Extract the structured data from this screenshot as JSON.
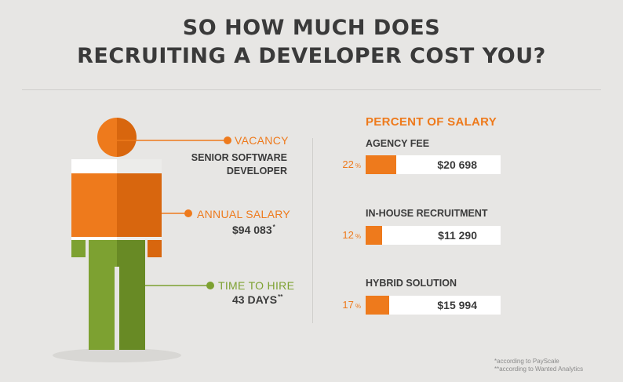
{
  "title": {
    "line1": "SO HOW MUCH DOES",
    "line2": "RECRUITING A DEVELOPER COST YOU?"
  },
  "colors": {
    "orange": "#ee7a1c",
    "green": "#7da131",
    "text": "#3a3a3a",
    "background": "#e7e6e4"
  },
  "figure": {
    "vacancy": {
      "heading": "VACANCY",
      "value_line1": "SENIOR SOFTWARE",
      "value_line2": "DEVELOPER"
    },
    "salary": {
      "heading": "ANNUAL SALARY",
      "value": "$94 083",
      "mark": "*"
    },
    "hire": {
      "heading": "TIME TO HIRE",
      "value": "43 DAYS",
      "mark": "**"
    }
  },
  "costs": {
    "title": "PERCENT OF SALARY",
    "items": [
      {
        "label": "AGENCY FEE",
        "percent": 22,
        "unit": "%",
        "amount": "$20 698"
      },
      {
        "label": "IN-HOUSE RECRUITMENT",
        "percent": 12,
        "unit": "%",
        "amount": "$11 290"
      },
      {
        "label": "HYBRID SOLUTION",
        "percent": 17,
        "unit": "%",
        "amount": "$15 994"
      }
    ]
  },
  "footnotes": {
    "one": "*according to PayScale",
    "two": "**according to Wanted Analytics"
  }
}
